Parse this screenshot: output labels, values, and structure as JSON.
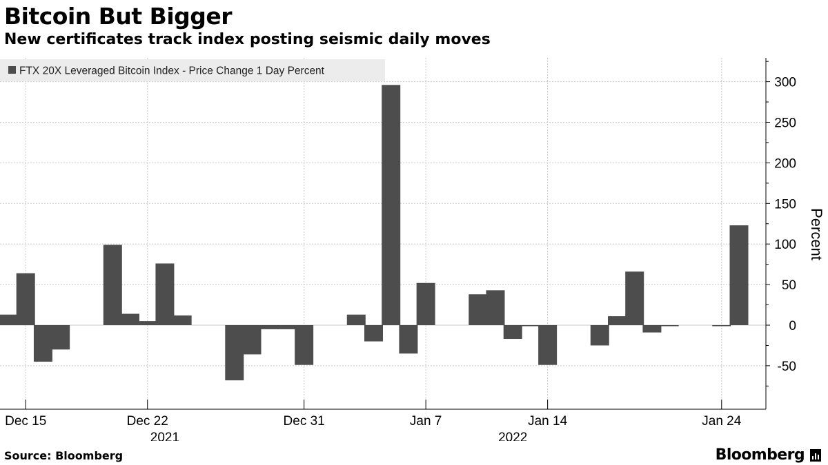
{
  "header": {
    "title": "Bitcoin But Bigger",
    "subtitle": "New certificates track index posting seismic daily moves"
  },
  "footer": {
    "source": "Source: Bloomberg",
    "brand": "Bloomberg"
  },
  "colors": {
    "bar": "#4d4d4d",
    "grid": "#c8c8c8",
    "legend_bg": "#ececec"
  },
  "chart_data": {
    "type": "bar",
    "title": "Bitcoin But Bigger",
    "subtitle": "New certificates track index posting seismic daily moves",
    "ylabel": "Percent",
    "ylim": [
      -100,
      330
    ],
    "yticks": [
      -50,
      0,
      50,
      100,
      150,
      200,
      250,
      300
    ],
    "grid": true,
    "legend_position": "top-left",
    "x_tick_labels": [
      "Dec 15",
      "Dec 22",
      "Dec 31",
      "Jan 7",
      "Jan 14",
      "Jan 24"
    ],
    "year_labels": [
      "2021",
      "2022"
    ],
    "series": [
      {
        "name": "FTX 20X Leveraged Bitcoin Index - Price Change 1 Day Percent",
        "dates": [
          "2021-12-14",
          "2021-12-15",
          "2021-12-16",
          "2021-12-17",
          "2021-12-20",
          "2021-12-21",
          "2021-12-22",
          "2021-12-23",
          "2021-12-24",
          "2021-12-27",
          "2021-12-28",
          "2021-12-29",
          "2021-12-30",
          "2021-12-31",
          "2022-01-03",
          "2022-01-04",
          "2022-01-05",
          "2022-01-06",
          "2022-01-07",
          "2022-01-10",
          "2022-01-11",
          "2022-01-12",
          "2022-01-13",
          "2022-01-14",
          "2022-01-17",
          "2022-01-18",
          "2022-01-19",
          "2022-01-20",
          "2022-01-21",
          "2022-01-24",
          "2022-01-25"
        ],
        "values": [
          13,
          64,
          -45,
          -30,
          99,
          14,
          5,
          76,
          12,
          -68,
          -36,
          -5,
          -5,
          -49,
          13,
          -20,
          296,
          -35,
          52,
          38,
          43,
          -17,
          -1,
          -49,
          -25,
          11,
          66,
          -9,
          -1,
          0,
          123
        ]
      }
    ]
  }
}
